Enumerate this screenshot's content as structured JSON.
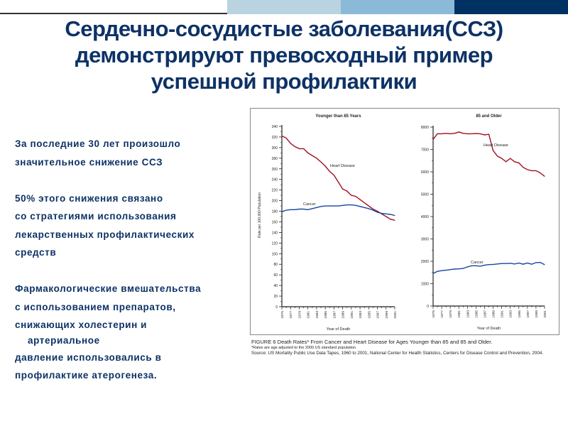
{
  "colors": {
    "title": "#0d3266",
    "heart": "#a0101e",
    "cancer": "#1546a0",
    "bar_light": "#b9d3e1",
    "bar_mid": "#8bb9d8",
    "bar_dark": "#003163"
  },
  "title": [
    "Сердечно-сосудистые заболевания(ССЗ)",
    "демонстрируют превосходный пример",
    "успешной профилактики"
  ],
  "body": {
    "p1": [
      "За последние 30 лет произошло",
      "значительное снижение ССЗ"
    ],
    "p2": [
      "50% этого снижения связано",
      "со стратегиями использования",
      "лекарственных профилактических",
      "средств"
    ],
    "p3": [
      "Фармакологические вмешательства",
      "с использованием препаратов,",
      "снижающих холестерин и"
    ],
    "p3_indent": "артериальное",
    "p4": [
      "давление использовались  в",
      "профилактике атерогенеза."
    ]
  },
  "caption": {
    "line1": "FIGURE 6  Death Rates* From Cancer and Heart Disease for Ages Younger than 85 and 85 and Older.",
    "line2": "*Rates are age adjusted to the 2000 US standard population.",
    "line3": "Source: US Mortality Public Use Data Tapes, 1960 to 2001, National Center for Health Statistics, Centers for Disease Control and Prevention, 2004."
  },
  "chart_data": [
    {
      "type": "line",
      "title": "Younger than 85 Years",
      "xlabel": "Year of Death",
      "ylabel": "Rate per 100,000 Population",
      "ylim": [
        0,
        340
      ],
      "yticks": [
        0,
        20,
        40,
        60,
        80,
        100,
        120,
        140,
        160,
        180,
        200,
        220,
        240,
        260,
        280,
        300,
        320,
        340
      ],
      "xtick_labels": [
        "1975",
        "1977",
        "1979",
        "1981",
        "1983",
        "1985",
        "1987",
        "1989",
        "1991",
        "1993",
        "1995",
        "1997",
        "1999",
        "2001"
      ],
      "x": [
        1975,
        1976,
        1977,
        1978,
        1979,
        1980,
        1981,
        1982,
        1983,
        1984,
        1985,
        1986,
        1987,
        1988,
        1989,
        1990,
        1991,
        1992,
        1993,
        1994,
        1995,
        1996,
        1997,
        1998,
        1999,
        2000,
        2001
      ],
      "series": [
        {
          "name": "Heart Disease",
          "color": "#a0101e",
          "values": [
            322,
            318,
            308,
            302,
            298,
            298,
            290,
            285,
            280,
            273,
            265,
            255,
            248,
            235,
            222,
            218,
            210,
            208,
            202,
            196,
            190,
            184,
            180,
            175,
            170,
            165,
            163
          ]
        },
        {
          "name": "Cancer",
          "color": "#1546a0",
          "values": [
            179,
            182,
            183,
            183,
            184,
            184,
            183,
            185,
            187,
            189,
            190,
            190,
            190,
            190,
            191,
            192,
            192,
            191,
            189,
            187,
            185,
            182,
            178,
            176,
            175,
            174,
            172
          ]
        }
      ],
      "grid": false
    },
    {
      "type": "line",
      "title": "85 and Older",
      "xlabel": "Year of Death",
      "ylim": [
        0,
        8000
      ],
      "yticks": [
        0,
        1000,
        2000,
        3000,
        4000,
        5000,
        6000,
        7000,
        8000
      ],
      "xtick_labels": [
        "1975",
        "1977",
        "1979",
        "1981",
        "1983",
        "1985",
        "1987",
        "1989",
        "1991",
        "1993",
        "1995",
        "1997",
        "1999",
        "2001"
      ],
      "x": [
        1975,
        1976,
        1977,
        1978,
        1979,
        1980,
        1981,
        1982,
        1983,
        1984,
        1985,
        1986,
        1987,
        1988,
        1989,
        1990,
        1991,
        1992,
        1993,
        1994,
        1995,
        1996,
        1997,
        1998,
        1999,
        2000,
        2001
      ],
      "series": [
        {
          "name": "Heart Disease",
          "color": "#a0101e",
          "values": [
            7450,
            7700,
            7700,
            7720,
            7700,
            7720,
            7780,
            7720,
            7700,
            7700,
            7710,
            7700,
            7650,
            7680,
            6950,
            6700,
            6600,
            6450,
            6600,
            6450,
            6400,
            6200,
            6100,
            6050,
            6050,
            5950,
            5800
          ]
        },
        {
          "name": "Cancer",
          "color": "#1546a0",
          "values": [
            1450,
            1550,
            1580,
            1600,
            1630,
            1650,
            1660,
            1680,
            1750,
            1800,
            1800,
            1780,
            1830,
            1850,
            1860,
            1880,
            1900,
            1900,
            1910,
            1880,
            1920,
            1870,
            1920,
            1870,
            1940,
            1950,
            1850
          ]
        }
      ],
      "grid": false
    }
  ]
}
